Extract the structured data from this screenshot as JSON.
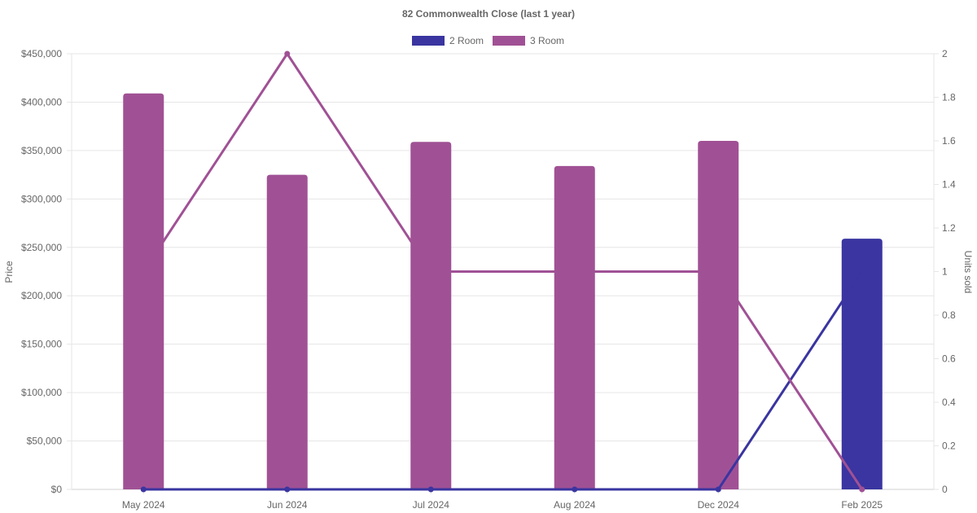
{
  "chart_data": {
    "type": "bar",
    "title": "82 Commonwealth Close (last 1 year)",
    "categories": [
      "May 2024",
      "Jun 2024",
      "Jul 2024",
      "Aug 2024",
      "Dec 2024",
      "Feb 2025"
    ],
    "y_left": {
      "label": "Price",
      "ylim": [
        0,
        450000
      ],
      "ticks": [
        "$0",
        "$50,000",
        "$100,000",
        "$150,000",
        "$200,000",
        "$250,000",
        "$300,000",
        "$350,000",
        "$400,000",
        "$450,000"
      ]
    },
    "y_right": {
      "label": "Units sold",
      "ylim": [
        0,
        2
      ],
      "ticks": [
        "0",
        "0.2",
        "0.4",
        "0.6",
        "0.8",
        "1",
        "1.2",
        "1.4",
        "1.6",
        "1.8",
        "2"
      ]
    },
    "legend": {
      "position": "top",
      "items": [
        {
          "label": "2 Room",
          "color": "#3a35a0"
        },
        {
          "label": "3 Room",
          "color": "#a05195"
        }
      ]
    },
    "bar_series": [
      {
        "name": "2 Room",
        "color": "#3a35a0",
        "values": [
          null,
          null,
          null,
          null,
          null,
          259000
        ]
      },
      {
        "name": "3 Room",
        "color": "#a05195",
        "values": [
          409000,
          325000,
          359000,
          334000,
          360000,
          null
        ]
      }
    ],
    "line_series": [
      {
        "name": "2 Room",
        "color": "#3a35a0",
        "values": [
          0,
          0,
          0,
          0,
          0,
          1
        ]
      },
      {
        "name": "3 Room",
        "color": "#a05195",
        "values": [
          1,
          2,
          1,
          1,
          1,
          0
        ]
      }
    ],
    "grid": true
  }
}
